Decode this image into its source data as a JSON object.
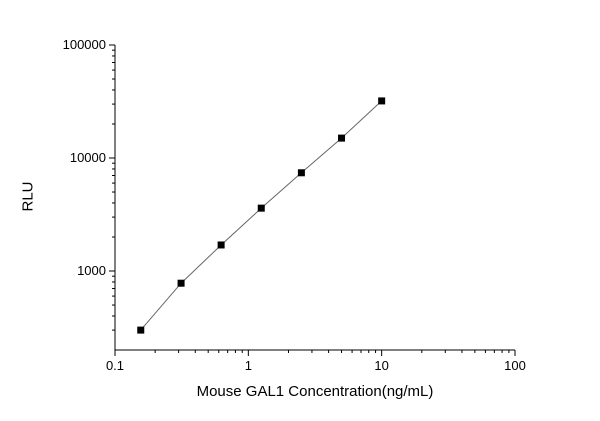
{
  "chart_data": {
    "type": "scatter",
    "x": [
      0.156,
      0.313,
      0.625,
      1.25,
      2.5,
      5,
      10
    ],
    "y": [
      300,
      780,
      1700,
      3600,
      7400,
      15000,
      32000
    ],
    "title": "",
    "xlabel": "Mouse GAL1 Concentration(ng/mL)",
    "ylabel": "RLU",
    "xscale": "log",
    "yscale": "log",
    "xlim": [
      0.1,
      100
    ],
    "ylim": [
      200,
      100000
    ],
    "x_ticks": [
      0.1,
      1,
      10,
      100
    ],
    "x_tick_labels": [
      "0.1",
      "1",
      "10",
      "100"
    ],
    "y_ticks": [
      1000,
      10000,
      100000
    ],
    "y_tick_labels": [
      "1000",
      "10000",
      "100000"
    ],
    "grid": false,
    "legend": false,
    "marker": "square",
    "marker_color": "#000000",
    "line_color": "#666666",
    "axis_color": "#000000",
    "background_color": "#ffffff"
  }
}
